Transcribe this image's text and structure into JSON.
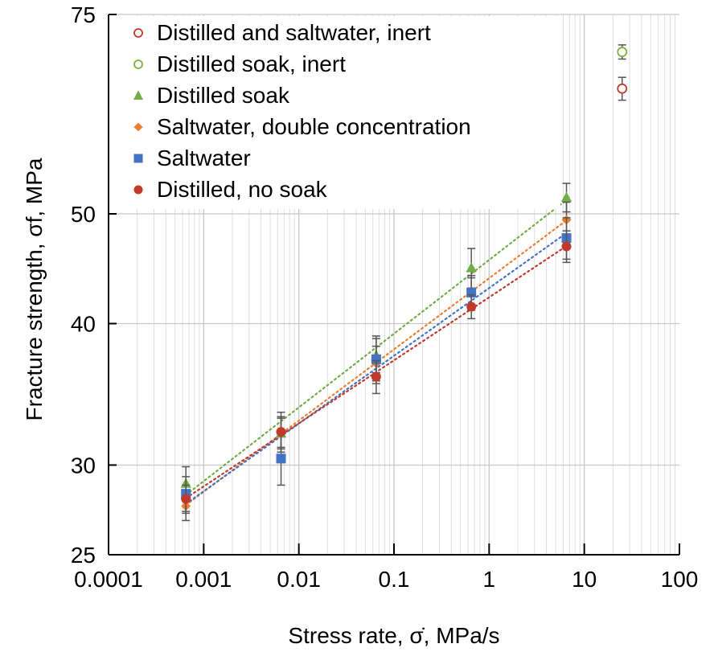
{
  "chart_data": {
    "type": "scatter",
    "xlabel": "Stress rate, σ̇, MPa/s",
    "ylabel": "Fracture strength, σf, MPa",
    "xscale": "log",
    "yscale": "log",
    "xlim": [
      0.0001,
      100
    ],
    "ylim": [
      25,
      75
    ],
    "x_ticks": [
      {
        "value": 0.0001,
        "label": "0.0001"
      },
      {
        "value": 0.001,
        "label": "0.001"
      },
      {
        "value": 0.01,
        "label": "0.01"
      },
      {
        "value": 0.1,
        "label": "0.1"
      },
      {
        "value": 1,
        "label": "1"
      },
      {
        "value": 10,
        "label": "10"
      },
      {
        "value": 100,
        "label": "100"
      }
    ],
    "y_ticks": [
      {
        "value": 25,
        "label": "25"
      },
      {
        "value": 30,
        "label": "30"
      },
      {
        "value": 40,
        "label": "40"
      },
      {
        "value": 50,
        "label": "50"
      },
      {
        "value": 75,
        "label": "75"
      }
    ],
    "grid": true,
    "legend_position": "top-left",
    "series": [
      {
        "name": "Distilled and saltwater, inert",
        "marker": "open-circle",
        "color": "#c0392b",
        "points": [
          {
            "x": 25,
            "y": 64.5,
            "err": 1.5
          }
        ],
        "trendline": false
      },
      {
        "name": "Distilled soak, inert",
        "marker": "open-circle",
        "color": "#7cb342",
        "points": [
          {
            "x": 25,
            "y": 69.5,
            "err": 1.0
          }
        ],
        "trendline": false
      },
      {
        "name": "Distilled soak",
        "marker": "triangle",
        "color": "#70ad47",
        "points": [
          {
            "x": 0.00065,
            "y": 28.9,
            "err": 1.0
          },
          {
            "x": 0.0065,
            "y": 32.0,
            "err": 1.0
          },
          {
            "x": 0.065,
            "y": 37.5,
            "err": 1.3
          },
          {
            "x": 0.65,
            "y": 44.8,
            "err": 1.8
          },
          {
            "x": 6.5,
            "y": 51.7,
            "err": 1.5
          }
        ],
        "trendline": true
      },
      {
        "name": "Saltwater, double concentration",
        "marker": "diamond",
        "color": "#ed7d31",
        "points": [
          {
            "x": 0.00065,
            "y": 27.6,
            "err": 0.8
          },
          {
            "x": 0.0065,
            "y": 32.1,
            "err": 1.0
          },
          {
            "x": 0.065,
            "y": 36.9,
            "err": 1.3
          },
          {
            "x": 0.65,
            "y": 42.6,
            "err": 1.3
          },
          {
            "x": 6.5,
            "y": 49.4,
            "err": 1.8
          }
        ],
        "trendline": true
      },
      {
        "name": "Saltwater",
        "marker": "square",
        "color": "#4472c4",
        "points": [
          {
            "x": 0.00065,
            "y": 28.3,
            "err": 1.0
          },
          {
            "x": 0.0065,
            "y": 30.4,
            "err": 1.6
          },
          {
            "x": 0.065,
            "y": 37.2,
            "err": 1.8
          },
          {
            "x": 0.65,
            "y": 42.6,
            "err": 1.5
          },
          {
            "x": 6.5,
            "y": 47.6,
            "err": 2.0
          }
        ],
        "trendline": true
      },
      {
        "name": "Distilled, no soak",
        "marker": "circle",
        "color": "#c0392b",
        "points": [
          {
            "x": 0.00065,
            "y": 28.0,
            "err": 0.8
          },
          {
            "x": 0.0065,
            "y": 32.1,
            "err": 1.3
          },
          {
            "x": 0.065,
            "y": 35.9,
            "err": 1.2
          },
          {
            "x": 0.65,
            "y": 41.4,
            "err": 1.0
          },
          {
            "x": 6.5,
            "y": 46.8,
            "err": 1.5
          }
        ],
        "trendline": true
      }
    ]
  }
}
